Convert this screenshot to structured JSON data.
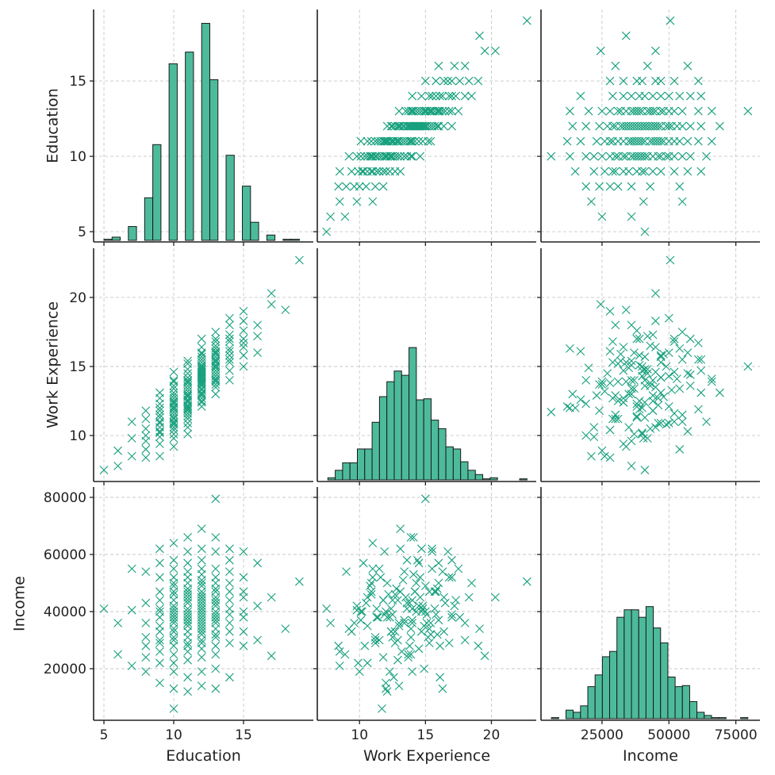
{
  "chart_data": {
    "type": "pairplot",
    "grid": true,
    "marker": "x",
    "colors": {
      "marker": "#17a07d",
      "bar_fill": "#4dbb9b",
      "bar_edge": "#1a1a1a",
      "grid": "#c8c8c8",
      "spine": "#222222"
    },
    "variables": [
      {
        "label": "Education",
        "xlim": [
          4.26,
          20.0
        ],
        "ylim": [
          4.32,
          19.74
        ],
        "ticks": [
          5,
          10,
          15
        ],
        "tick_labels": [
          "5",
          "10",
          "15"
        ]
      },
      {
        "label": "Work Experience",
        "xlim": [
          6.8,
          23.4
        ],
        "ylim": [
          6.67,
          23.56
        ],
        "ticks": [
          10,
          15,
          20
        ],
        "tick_labels": [
          "10",
          "15",
          "20"
        ]
      },
      {
        "label": "Income",
        "xlim": [
          2200,
          84000
        ],
        "ylim": [
          1944,
          83611
        ],
        "ticks_x": [
          25000,
          50000,
          75000
        ],
        "tick_labels_x": [
          "25000",
          "50000",
          "75000"
        ],
        "ticks_y": [
          20000,
          40000,
          60000,
          80000
        ],
        "tick_labels_y": [
          "20000",
          "40000",
          "60000",
          "80000"
        ]
      }
    ],
    "histogram_ylim": [
      -1.5,
      217
    ],
    "histograms": [
      {
        "variable": "Education",
        "bin_start": 5,
        "bin_end": 19,
        "counts": [
          1,
          3,
          0,
          13,
          0,
          40,
          90,
          0,
          166,
          0,
          177,
          0,
          204,
          151,
          0,
          80,
          0,
          51,
          17,
          0,
          5,
          0,
          1,
          1
        ]
      },
      {
        "variable": "Work Experience",
        "bin_start": 7.6,
        "bin_end": 22.7,
        "counts": [
          2,
          9,
          16,
          16,
          29,
          29,
          54,
          78,
          92,
          102,
          98,
          124,
          75,
          76,
          56,
          48,
          31,
          29,
          17,
          9,
          5,
          1,
          2,
          0,
          0,
          0,
          1
        ]
      },
      {
        "variable": "Income",
        "bin_start": 6100,
        "bin_end": 79500,
        "counts": [
          1,
          0,
          8,
          6,
          12,
          30,
          41,
          58,
          63,
          95,
          102,
          102,
          95,
          105,
          85,
          71,
          39,
          30,
          31,
          16,
          6,
          3,
          1,
          1,
          0,
          0,
          1
        ]
      }
    ],
    "points": {
      "columns": [
        "Education",
        "Work Experience",
        "Income"
      ],
      "values": [
        [
          5,
          7.5,
          41000
        ],
        [
          6,
          7.8,
          36000
        ],
        [
          6,
          8.9,
          25000
        ],
        [
          7,
          8.5,
          21000
        ],
        [
          7,
          9.8,
          40500
        ],
        [
          7,
          11.0,
          55000
        ],
        [
          8,
          8.4,
          28000
        ],
        [
          8,
          9.6,
          36000
        ],
        [
          8,
          10.5,
          43000
        ],
        [
          8,
          11.2,
          31000
        ],
        [
          8,
          9.0,
          54000
        ],
        [
          8,
          11.8,
          24000
        ],
        [
          8,
          10.0,
          19000
        ],
        [
          9,
          8.5,
          26000
        ],
        [
          9,
          9.4,
          33000
        ],
        [
          9,
          10.2,
          40000
        ],
        [
          9,
          10.9,
          47000
        ],
        [
          9,
          11.5,
          30000
        ],
        [
          9,
          12.3,
          38000
        ],
        [
          9,
          13.1,
          62000
        ],
        [
          9,
          9.9,
          22000
        ],
        [
          9,
          11.0,
          52000
        ],
        [
          9,
          12.0,
          15000
        ],
        [
          9,
          10.6,
          35000
        ],
        [
          9,
          11.8,
          44000
        ],
        [
          9,
          12.7,
          29000
        ],
        [
          9,
          10.3,
          57000
        ],
        [
          9,
          11.3,
          41000
        ],
        [
          10,
          9.2,
          34000
        ],
        [
          10,
          9.8,
          42000
        ],
        [
          10,
          10.4,
          28000
        ],
        [
          10,
          10.9,
          46000
        ],
        [
          10,
          11.3,
          38000
        ],
        [
          10,
          11.7,
          6000
        ],
        [
          10,
          12.1,
          50000
        ],
        [
          10,
          12.5,
          31000
        ],
        [
          10,
          12.9,
          44000
        ],
        [
          10,
          13.4,
          36000
        ],
        [
          10,
          13.9,
          25000
        ],
        [
          10,
          14.6,
          52000
        ],
        [
          10,
          11.0,
          64000
        ],
        [
          10,
          12.3,
          19000
        ],
        [
          10,
          10.1,
          40000
        ],
        [
          10,
          11.5,
          55000
        ],
        [
          10,
          12.7,
          33000
        ],
        [
          10,
          13.1,
          47000
        ],
        [
          10,
          10.6,
          22000
        ],
        [
          10,
          11.9,
          39000
        ],
        [
          10,
          12.0,
          13000
        ],
        [
          10,
          13.6,
          58000
        ],
        [
          10,
          11.2,
          30000
        ],
        [
          10,
          10.8,
          49000
        ],
        [
          10,
          12.4,
          41000
        ],
        [
          10,
          14.0,
          37000
        ],
        [
          11,
          10.1,
          37000
        ],
        [
          11,
          10.6,
          45000
        ],
        [
          11,
          11.2,
          29000
        ],
        [
          11,
          11.6,
          52000
        ],
        [
          11,
          12.0,
          40000
        ],
        [
          11,
          12.4,
          33000
        ],
        [
          11,
          12.8,
          48000
        ],
        [
          11,
          13.2,
          26000
        ],
        [
          11,
          13.6,
          43000
        ],
        [
          11,
          14.0,
          36000
        ],
        [
          11,
          14.5,
          57000
        ],
        [
          11,
          15.2,
          31000
        ],
        [
          11,
          11.9,
          61000
        ],
        [
          11,
          12.6,
          17000
        ],
        [
          11,
          13.9,
          66000
        ],
        [
          11,
          11.4,
          38000
        ],
        [
          11,
          12.2,
          46000
        ],
        [
          11,
          13.0,
          35000
        ],
        [
          11,
          13.4,
          54000
        ],
        [
          11,
          14.8,
          41000
        ],
        [
          11,
          12.9,
          23000
        ],
        [
          11,
          11.8,
          44000
        ],
        [
          11,
          10.9,
          50000
        ],
        [
          11,
          13.8,
          28000
        ],
        [
          11,
          12.5,
          39000
        ],
        [
          11,
          14.2,
          47000
        ],
        [
          11,
          15.4,
          36000
        ],
        [
          11,
          12.1,
          12000
        ],
        [
          12,
          12.1,
          38000
        ],
        [
          12,
          12.5,
          44000
        ],
        [
          12,
          12.9,
          30000
        ],
        [
          12,
          13.3,
          51000
        ],
        [
          12,
          13.6,
          41000
        ],
        [
          12,
          13.9,
          34000
        ],
        [
          12,
          14.2,
          47000
        ],
        [
          12,
          14.5,
          27000
        ],
        [
          12,
          14.8,
          42000
        ],
        [
          12,
          15.1,
          36000
        ],
        [
          12,
          15.5,
          55000
        ],
        [
          12,
          15.9,
          32000
        ],
        [
          12,
          16.4,
          45000
        ],
        [
          12,
          17.0,
          39000
        ],
        [
          12,
          13.1,
          69000
        ],
        [
          12,
          14.0,
          19000
        ],
        [
          12,
          14.7,
          62000
        ],
        [
          12,
          13.7,
          24000
        ],
        [
          12,
          14.3,
          40000
        ],
        [
          12,
          15.0,
          49000
        ],
        [
          12,
          13.4,
          37000
        ],
        [
          12,
          14.1,
          53000
        ],
        [
          12,
          15.3,
          29000
        ],
        [
          12,
          12.7,
          46000
        ],
        [
          12,
          13.8,
          43000
        ],
        [
          12,
          14.9,
          35000
        ],
        [
          12,
          16.0,
          50000
        ],
        [
          12,
          13.0,
          14000
        ],
        [
          12,
          14.4,
          58000
        ],
        [
          12,
          15.7,
          41000
        ],
        [
          12,
          12.4,
          33000
        ],
        [
          12,
          14.6,
          45000
        ],
        [
          13,
          13.0,
          36000
        ],
        [
          13,
          13.5,
          45000
        ],
        [
          13,
          13.9,
          31000
        ],
        [
          13,
          14.3,
          50000
        ],
        [
          13,
          14.7,
          40000
        ],
        [
          13,
          15.0,
          79500
        ],
        [
          13,
          15.3,
          34000
        ],
        [
          13,
          15.7,
          47000
        ],
        [
          13,
          16.1,
          28000
        ],
        [
          13,
          16.5,
          43000
        ],
        [
          13,
          17.0,
          38000
        ],
        [
          13,
          17.5,
          55000
        ],
        [
          13,
          14.1,
          66000
        ],
        [
          13,
          14.9,
          20000
        ],
        [
          13,
          15.5,
          61000
        ],
        [
          13,
          16.3,
          13000
        ],
        [
          13,
          14.5,
          42000
        ],
        [
          13,
          15.9,
          48000
        ],
        [
          13,
          13.7,
          25000
        ],
        [
          13,
          15.1,
          39000
        ],
        [
          13,
          16.8,
          52000
        ],
        [
          13,
          14.0,
          44000
        ],
        [
          13,
          15.4,
          32000
        ],
        [
          13,
          16.0,
          37000
        ],
        [
          14,
          14.0,
          41000
        ],
        [
          14,
          14.7,
          33000
        ],
        [
          14,
          15.3,
          47000
        ],
        [
          14,
          15.8,
          39000
        ],
        [
          14,
          16.3,
          54000
        ],
        [
          14,
          16.8,
          29000
        ],
        [
          14,
          17.3,
          44000
        ],
        [
          14,
          18.0,
          36000
        ],
        [
          14,
          18.5,
          50000
        ],
        [
          14,
          15.5,
          62000
        ],
        [
          14,
          16.1,
          17000
        ],
        [
          14,
          17.0,
          58000
        ],
        [
          15,
          15.0,
          40000
        ],
        [
          15,
          15.8,
          47000
        ],
        [
          15,
          16.4,
          33000
        ],
        [
          15,
          17.0,
          52000
        ],
        [
          15,
          17.6,
          38000
        ],
        [
          15,
          18.3,
          45000
        ],
        [
          15,
          19.0,
          28000
        ],
        [
          15,
          16.7,
          61000
        ],
        [
          16,
          16.0,
          57000
        ],
        [
          16,
          17.2,
          42000
        ],
        [
          16,
          18.0,
          30000
        ],
        [
          17,
          20.3,
          45000
        ],
        [
          17,
          19.5,
          24500
        ],
        [
          18,
          19.1,
          34000
        ],
        [
          19,
          22.7,
          50500
        ]
      ]
    }
  }
}
